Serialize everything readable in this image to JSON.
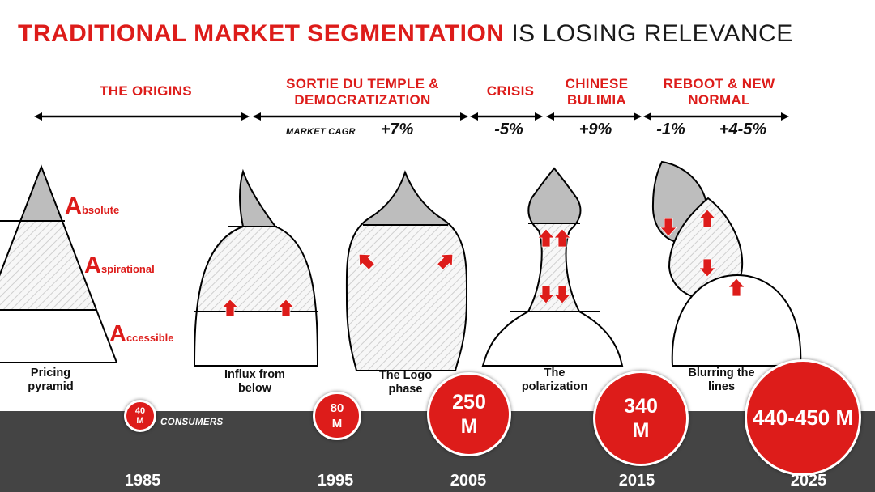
{
  "title": {
    "part1": "TRADITIONAL MARKET SEGMENTATION",
    "part2": "IS LOSING RELEVANCE"
  },
  "phases": [
    {
      "label": "THE ORIGINS"
    },
    {
      "label": "SORTIE DU TEMPLE & DEMOCRATIZATION"
    },
    {
      "label": "CRISIS"
    },
    {
      "label": "CHINESE BULIMIA"
    },
    {
      "label": "REBOOT & NEW NORMAL"
    }
  ],
  "cagr": {
    "label": "MARKET CAGR",
    "values": [
      "+7%",
      "-5%",
      "+9%",
      "-1%",
      "+4-5%"
    ]
  },
  "segments": [
    {
      "cap": "A",
      "rest": "bsolute"
    },
    {
      "cap": "A",
      "rest": "spirational"
    },
    {
      "cap": "A",
      "rest": "ccessible"
    }
  ],
  "shapes": [
    {
      "caption": "Pricing pyramid"
    },
    {
      "caption": "Influx from below"
    },
    {
      "caption": "The Logo phase"
    },
    {
      "caption": "The polarization"
    },
    {
      "caption": "Blurring the lines"
    }
  ],
  "consumers": [
    {
      "value": "40 M"
    },
    {
      "value": "80 M"
    },
    {
      "value": "250 M"
    },
    {
      "value": "340 M"
    },
    {
      "value": "440-450 M"
    }
  ],
  "consumers_label": "CONSUMERS",
  "years": [
    "1985",
    "1995",
    "2005",
    "2015",
    "2025"
  ],
  "colors": {
    "accent": "#dd1c1a",
    "band": "#444444",
    "top_fill": "#bdbdbd"
  }
}
